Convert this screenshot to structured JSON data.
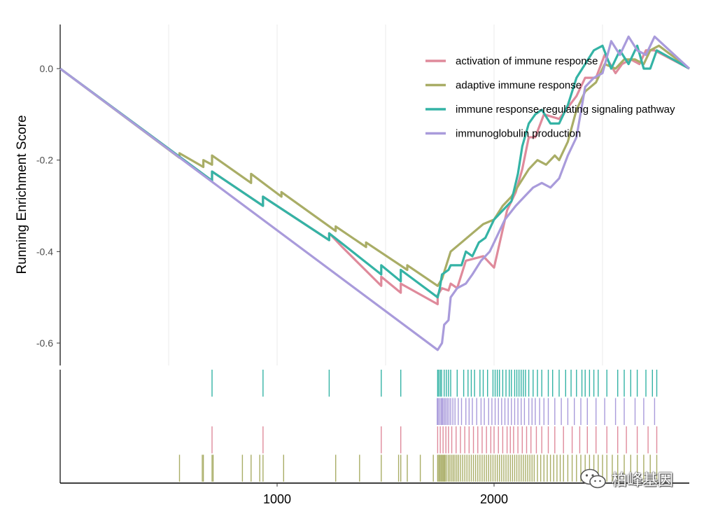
{
  "chart_data": {
    "type": "line",
    "title": "",
    "ylabel": "Running Enrichment Score",
    "xlabel": "",
    "xlim": [
      0,
      2900
    ],
    "ylim": [
      -0.65,
      0.1
    ],
    "y_ticks": [
      "0.0",
      "-0.2",
      "-0.4",
      "-0.6"
    ],
    "y_tick_values": [
      0.0,
      -0.2,
      -0.4,
      -0.6
    ],
    "x_ticks": [
      "1000",
      "2000"
    ],
    "x_tick_values": [
      1000,
      2000
    ],
    "legend_position": "top-right",
    "series": [
      {
        "name": "activation of immune response",
        "color": "#DF8A9B",
        "points": [
          [
            0,
            0
          ],
          [
            700,
            -0.245
          ],
          [
            700,
            -0.225
          ],
          [
            935,
            -0.3
          ],
          [
            935,
            -0.28
          ],
          [
            1240,
            -0.375
          ],
          [
            1240,
            -0.36
          ],
          [
            1300,
            -0.39
          ],
          [
            1480,
            -0.475
          ],
          [
            1480,
            -0.455
          ],
          [
            1570,
            -0.49
          ],
          [
            1570,
            -0.47
          ],
          [
            1740,
            -0.515
          ],
          [
            1740,
            -0.495
          ],
          [
            1760,
            -0.48
          ],
          [
            1790,
            -0.485
          ],
          [
            1800,
            -0.47
          ],
          [
            1830,
            -0.48
          ],
          [
            1870,
            -0.42
          ],
          [
            1950,
            -0.41
          ],
          [
            2000,
            -0.435
          ],
          [
            2060,
            -0.31
          ],
          [
            2100,
            -0.27
          ],
          [
            2130,
            -0.22
          ],
          [
            2160,
            -0.15
          ],
          [
            2190,
            -0.15
          ],
          [
            2230,
            -0.1
          ],
          [
            2300,
            -0.11
          ],
          [
            2380,
            -0.06
          ],
          [
            2420,
            -0.02
          ],
          [
            2470,
            -0.02
          ],
          [
            2510,
            0.03
          ],
          [
            2560,
            -0.01
          ],
          [
            2590,
            0.01
          ],
          [
            2630,
            0.02
          ],
          [
            2670,
            0.01
          ],
          [
            2700,
            0.04
          ],
          [
            2740,
            0.04
          ],
          [
            2900,
            0.0
          ]
        ]
      },
      {
        "name": "adaptive immune response",
        "color": "#A9AD66",
        "points": [
          [
            0,
            0
          ],
          [
            550,
            -0.195
          ],
          [
            550,
            -0.185
          ],
          [
            660,
            -0.215
          ],
          [
            660,
            -0.2
          ],
          [
            700,
            -0.21
          ],
          [
            700,
            -0.19
          ],
          [
            880,
            -0.25
          ],
          [
            880,
            -0.23
          ],
          [
            1020,
            -0.28
          ],
          [
            1020,
            -0.27
          ],
          [
            1270,
            -0.355
          ],
          [
            1270,
            -0.345
          ],
          [
            1410,
            -0.39
          ],
          [
            1410,
            -0.38
          ],
          [
            1600,
            -0.44
          ],
          [
            1600,
            -0.43
          ],
          [
            1740,
            -0.475
          ],
          [
            1760,
            -0.46
          ],
          [
            1780,
            -0.43
          ],
          [
            1800,
            -0.4
          ],
          [
            1850,
            -0.38
          ],
          [
            1900,
            -0.36
          ],
          [
            1950,
            -0.34
          ],
          [
            2000,
            -0.33
          ],
          [
            2040,
            -0.3
          ],
          [
            2080,
            -0.28
          ],
          [
            2120,
            -0.25
          ],
          [
            2160,
            -0.22
          ],
          [
            2200,
            -0.2
          ],
          [
            2240,
            -0.21
          ],
          [
            2280,
            -0.19
          ],
          [
            2300,
            -0.2
          ],
          [
            2340,
            -0.16
          ],
          [
            2380,
            -0.09
          ],
          [
            2420,
            -0.05
          ],
          [
            2470,
            -0.03
          ],
          [
            2510,
            0.01
          ],
          [
            2560,
            0.0
          ],
          [
            2600,
            0.02
          ],
          [
            2650,
            0.02
          ],
          [
            2690,
            0.01
          ],
          [
            2720,
            0.04
          ],
          [
            2760,
            0.05
          ],
          [
            2900,
            0.0
          ]
        ]
      },
      {
        "name": "immune response-regulating signaling pathway",
        "color": "#34B3A5",
        "points": [
          [
            0,
            0
          ],
          [
            700,
            -0.245
          ],
          [
            700,
            -0.225
          ],
          [
            935,
            -0.3
          ],
          [
            935,
            -0.28
          ],
          [
            1240,
            -0.375
          ],
          [
            1240,
            -0.36
          ],
          [
            1480,
            -0.45
          ],
          [
            1480,
            -0.43
          ],
          [
            1570,
            -0.465
          ],
          [
            1570,
            -0.44
          ],
          [
            1740,
            -0.5
          ],
          [
            1750,
            -0.48
          ],
          [
            1760,
            -0.45
          ],
          [
            1790,
            -0.44
          ],
          [
            1800,
            -0.43
          ],
          [
            1850,
            -0.43
          ],
          [
            1870,
            -0.4
          ],
          [
            1900,
            -0.41
          ],
          [
            1930,
            -0.38
          ],
          [
            1960,
            -0.37
          ],
          [
            2000,
            -0.33
          ],
          [
            2040,
            -0.31
          ],
          [
            2080,
            -0.29
          ],
          [
            2110,
            -0.23
          ],
          [
            2130,
            -0.17
          ],
          [
            2160,
            -0.12
          ],
          [
            2190,
            -0.1
          ],
          [
            2220,
            -0.09
          ],
          [
            2260,
            -0.12
          ],
          [
            2300,
            -0.12
          ],
          [
            2340,
            -0.08
          ],
          [
            2380,
            -0.02
          ],
          [
            2420,
            0.01
          ],
          [
            2460,
            0.04
          ],
          [
            2500,
            0.05
          ],
          [
            2540,
            0.0
          ],
          [
            2580,
            0.04
          ],
          [
            2620,
            0.01
          ],
          [
            2660,
            0.05
          ],
          [
            2690,
            0.0
          ],
          [
            2720,
            0.0
          ],
          [
            2750,
            0.04
          ],
          [
            2900,
            0.0
          ]
        ]
      },
      {
        "name": "immunoglobulin production",
        "color": "#A99BDB",
        "points": [
          [
            0,
            0
          ],
          [
            1740,
            -0.615
          ],
          [
            1760,
            -0.6
          ],
          [
            1770,
            -0.56
          ],
          [
            1790,
            -0.55
          ],
          [
            1800,
            -0.5
          ],
          [
            1830,
            -0.48
          ],
          [
            1870,
            -0.47
          ],
          [
            1900,
            -0.45
          ],
          [
            1940,
            -0.42
          ],
          [
            1980,
            -0.4
          ],
          [
            2000,
            -0.38
          ],
          [
            2050,
            -0.33
          ],
          [
            2100,
            -0.3
          ],
          [
            2140,
            -0.28
          ],
          [
            2180,
            -0.26
          ],
          [
            2220,
            -0.25
          ],
          [
            2260,
            -0.26
          ],
          [
            2300,
            -0.24
          ],
          [
            2340,
            -0.19
          ],
          [
            2380,
            -0.15
          ],
          [
            2420,
            -0.04
          ],
          [
            2460,
            -0.02
          ],
          [
            2500,
            -0.01
          ],
          [
            2540,
            0.06
          ],
          [
            2580,
            0.03
          ],
          [
            2620,
            0.07
          ],
          [
            2660,
            0.04
          ],
          [
            2700,
            0.03
          ],
          [
            2740,
            0.07
          ],
          [
            2900,
            0.0
          ]
        ]
      }
    ],
    "rug": [
      {
        "series": "immune response-regulating signaling pathway",
        "positions": [
          700,
          935,
          1240,
          1480,
          1570,
          1740,
          1745,
          1752,
          1758,
          1770,
          1780,
          1790,
          1800,
          1830,
          1860,
          1880,
          1895,
          1910,
          1935,
          1950,
          1970,
          1995,
          2005,
          2015,
          2025,
          2040,
          2055,
          2070,
          2080,
          2095,
          2105,
          2115,
          2125,
          2135,
          2145,
          2160,
          2180,
          2200,
          2220,
          2250,
          2270,
          2300,
          2330,
          2355,
          2380,
          2405,
          2420,
          2440,
          2460,
          2480,
          2520,
          2570,
          2600,
          2630,
          2660,
          2700,
          2730,
          2750
        ]
      },
      {
        "series": "immunoglobulin production",
        "positions": [
          1738,
          1742,
          1748,
          1755,
          1760,
          1765,
          1772,
          1778,
          1785,
          1792,
          1800,
          1810,
          1820,
          1835,
          1850,
          1870,
          1885,
          1900,
          1920,
          1940,
          1955,
          1975,
          1990,
          2005,
          2020,
          2035,
          2050,
          2065,
          2080,
          2095,
          2110,
          2125,
          2140,
          2160,
          2175,
          2190,
          2210,
          2230,
          2250,
          2280,
          2310,
          2340,
          2370,
          2400,
          2430,
          2470,
          2510,
          2560,
          2600,
          2650,
          2690,
          2740
        ]
      },
      {
        "series": "activation of immune response",
        "positions": [
          700,
          935,
          1480,
          1570,
          1740,
          1752,
          1765,
          1778,
          1790,
          1805,
          1825,
          1845,
          1865,
          1885,
          1905,
          1925,
          1945,
          1965,
          1985,
          2000,
          2020,
          2040,
          2060,
          2075,
          2090,
          2110,
          2130,
          2150,
          2170,
          2195,
          2220,
          2250,
          2280,
          2320,
          2360,
          2395,
          2430,
          2470,
          2520,
          2570,
          2610,
          2660,
          2710,
          2750
        ]
      },
      {
        "series": "adaptive immune response",
        "positions": [
          550,
          655,
          660,
          700,
          705,
          840,
          880,
          920,
          935,
          1030,
          1270,
          1380,
          1480,
          1560,
          1570,
          1600,
          1660,
          1720,
          1740,
          1745,
          1750,
          1755,
          1760,
          1765,
          1770,
          1775,
          1782,
          1790,
          1797,
          1805,
          1812,
          1820,
          1828,
          1836,
          1845,
          1855,
          1865,
          1875,
          1885,
          1895,
          1905,
          1915,
          1925,
          1935,
          1945,
          1955,
          1965,
          1975,
          1985,
          1995,
          2005,
          2015,
          2025,
          2035,
          2045,
          2055,
          2065,
          2075,
          2085,
          2095,
          2105,
          2115,
          2125,
          2135,
          2145,
          2155,
          2165,
          2175,
          2185,
          2200,
          2215,
          2230,
          2245,
          2260,
          2275,
          2290,
          2305,
          2320,
          2340,
          2360,
          2380,
          2400,
          2420,
          2440,
          2460,
          2480,
          2500,
          2520,
          2545,
          2570,
          2600,
          2630,
          2660,
          2690,
          2720,
          2750
        ]
      }
    ]
  },
  "watermark": {
    "text": "柏峰基因",
    "icon": "wechat-icon"
  }
}
